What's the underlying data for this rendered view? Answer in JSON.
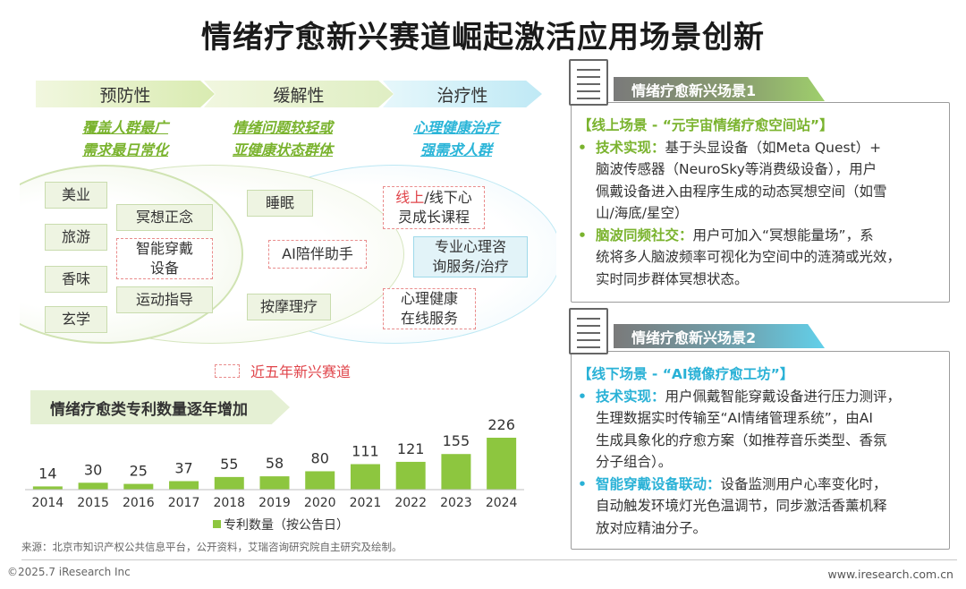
{
  "title": "情绪疗愈新兴赛道崛起激活应用场景创新",
  "stages": [
    {
      "label": "预防性",
      "feature_line1": "覆盖人群最广",
      "feature_line2": "需求最日常化"
    },
    {
      "label": "缓解性",
      "feature_line1": "情绪问题较轻或",
      "feature_line2": "亚健康状态群体"
    },
    {
      "label": "治疗性",
      "feature_line1": "心理健康治疗",
      "feature_line2": "强需求人群"
    }
  ],
  "tags": {
    "meiye": "美业",
    "lvyou": "旅游",
    "xiangwei": "香味",
    "xuanxue": "玄学",
    "mingxiang": "冥想正念",
    "wearable_1": "智能穿戴",
    "wearable_2": "设备",
    "sport": "运动指导",
    "sleep": "睡眠",
    "ai_companion": "AI陪伴助手",
    "massage": "按摩理疗",
    "course_hl": "线上",
    "course_1": "/线下心",
    "course_2": "灵成长课程",
    "pro_1": "专业心理咨",
    "pro_2": "询服务/治疗",
    "online_1": "心理健康",
    "online_2": "在线服务"
  },
  "legend_new": "近五年新兴赛道",
  "chart_banner": "情绪疗愈类专利数量逐年增加",
  "chart_data": {
    "type": "bar",
    "categories": [
      "2014",
      "2015",
      "2016",
      "2017",
      "2018",
      "2019",
      "2020",
      "2021",
      "2022",
      "2023",
      "2024"
    ],
    "values": [
      14,
      30,
      25,
      37,
      55,
      58,
      80,
      111,
      121,
      155,
      226
    ],
    "series": [
      {
        "name": "专利数量（按公告日）",
        "values": [
          14,
          30,
          25,
          37,
          55,
          58,
          80,
          111,
          121,
          155,
          226
        ]
      }
    ],
    "legend_label": "专利数量（按公告日）",
    "ylim": [
      0,
      226
    ],
    "color": "#8dc63f"
  },
  "source": "来源：北京市知识产权公共信息平台，公开资料，艾瑞咨询研究院自主研究及绘制。",
  "footer": {
    "copyright": "©2025.7 iResearch Inc",
    "website": "www.iresearch.com.cn"
  },
  "scene1": {
    "banner": "情绪疗愈新兴场景1",
    "heading": "【线上场景 - “元宇宙情绪疗愈空间站”】",
    "b1_kw": "技术实现：",
    "b1_line1": "基于头显设备（如Meta Quest）+",
    "b1_line2": "脑波传感器（NeuroSky等消费级设备），用户",
    "b1_line3": "佩戴设备进入由程序生成的动态冥想空间（如雪",
    "b1_line4": "山/海底/星空）",
    "b2_kw": "脑波同频社交：",
    "b2_line1": "用户可加入“冥想能量场”，系",
    "b2_line2": "统将多人脑波频率可视化为空间中的涟漪或光效，",
    "b2_line3": "实时同步群体冥想状态。"
  },
  "scene2": {
    "banner": "情绪疗愈新兴场景2",
    "heading": "【线下场景 - “AI镜像疗愈工坊”】",
    "b1_kw": "技术实现：",
    "b1_line1": "用户佩戴智能穿戴设备进行压力测评，",
    "b1_line2": "生理数据实时传输至“AI情绪管理系统”，由AI",
    "b1_line3": "生成具象化的疗愈方案（如推荐音乐类型、香氛",
    "b1_line4": "分子组合）。",
    "b2_kw": "智能穿戴设备联动：",
    "b2_line1": "设备监测用户心率变化时，",
    "b2_line2": "自动触发环境灯光色温调节，同步激活香薰机释",
    "b2_line3": "放对应精油分子。"
  },
  "bullet_char": "•",
  "colors": {
    "green": "#7ab32e",
    "cyan": "#29b1d6",
    "red": "#e0454b",
    "bar": "#8dc63f"
  }
}
